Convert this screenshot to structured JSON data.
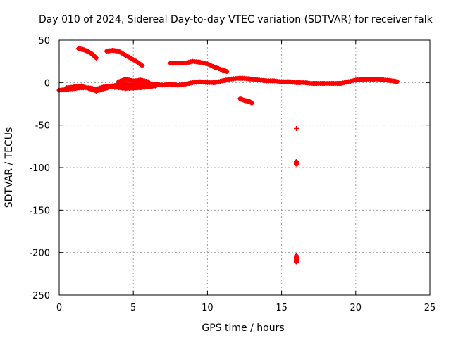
{
  "chart_data": {
    "type": "scatter",
    "title": "Day 010 of 2024, Sidereal Day-to-day VTEC variation (SDTVAR) for receiver falk",
    "xlabel": "GPS time / hours",
    "ylabel": "SDTVAR / TECUs",
    "xlim": [
      0,
      25
    ],
    "ylim": [
      -250,
      50
    ],
    "xticks": [
      0,
      5,
      10,
      15,
      20,
      25
    ],
    "yticks": [
      50,
      0,
      -50,
      -100,
      -150,
      -200,
      -250
    ],
    "grid": true,
    "marker": "+",
    "series": [
      {
        "name": "SDTVAR",
        "color": "#ff0000",
        "segments": [
          {
            "x": [
              0.0,
              0.5,
              1.0,
              1.5,
              2.0,
              2.5,
              3.0,
              3.5,
              4.0,
              4.5,
              5.0,
              5.5,
              6.0,
              6.5,
              7.0,
              7.5,
              8.0,
              8.5,
              9.0,
              9.5,
              10.0,
              10.5,
              11.0,
              11.5,
              12.0,
              12.5,
              13.0,
              13.5,
              14.0,
              14.5,
              15.0,
              15.5,
              16.0,
              16.5,
              17.0,
              17.5,
              18.0,
              18.5,
              19.0,
              19.5,
              20.0,
              20.5,
              21.0,
              21.5,
              22.0,
              22.5,
              22.8
            ],
            "y": [
              -9,
              -8,
              -7,
              -6,
              -6,
              -8,
              -5,
              -4,
              -3,
              -2,
              -3,
              -1,
              -1,
              -2,
              -3,
              -2,
              -3,
              -2,
              0,
              1,
              0,
              0,
              2,
              4,
              5,
              5,
              4,
              3,
              2,
              2,
              1,
              1,
              0,
              0,
              -1,
              -1,
              -1,
              -1,
              -1,
              1,
              3,
              4,
              4,
              4,
              3,
              2,
              1
            ]
          },
          {
            "x": [
              0.5,
              1.5,
              2.5,
              3.5,
              4.5,
              5.5,
              6.5
            ],
            "y": [
              -6,
              -4,
              -10,
              -5,
              -7,
              -6,
              -4
            ]
          },
          {
            "x": [
              4.0,
              4.5,
              5.0,
              5.5,
              6.0
            ],
            "y": [
              1,
              4,
              2,
              3,
              1
            ]
          },
          {
            "x": [
              1.3,
              1.6,
              1.9,
              2.2,
              2.5
            ],
            "y": [
              40,
              39,
              37,
              34,
              29
            ]
          },
          {
            "x": [
              3.2,
              3.6,
              4.0,
              4.4,
              4.8,
              5.2,
              5.6
            ],
            "y": [
              37,
              38,
              37,
              33,
              29,
              25,
              20
            ]
          },
          {
            "x": [
              7.5,
              8.0,
              8.5,
              9.0,
              9.5,
              10.0,
              10.5,
              11.0,
              11.3
            ],
            "y": [
              23,
              23,
              23,
              25,
              24,
              22,
              18,
              15,
              13
            ]
          },
          {
            "x": [
              12.2,
              12.5,
              12.8,
              13.0
            ],
            "y": [
              -19,
              -21,
              -22,
              -24
            ]
          },
          {
            "x": [
              16.0
            ],
            "y": [
              -54
            ]
          },
          {
            "x": [
              16.0,
              16.0
            ],
            "y": [
              -93,
              -96
            ]
          },
          {
            "x": [
              16.0,
              16.0,
              16.0,
              16.0
            ],
            "y": [
              -204,
              -207,
              -209,
              -211
            ]
          }
        ]
      }
    ]
  }
}
